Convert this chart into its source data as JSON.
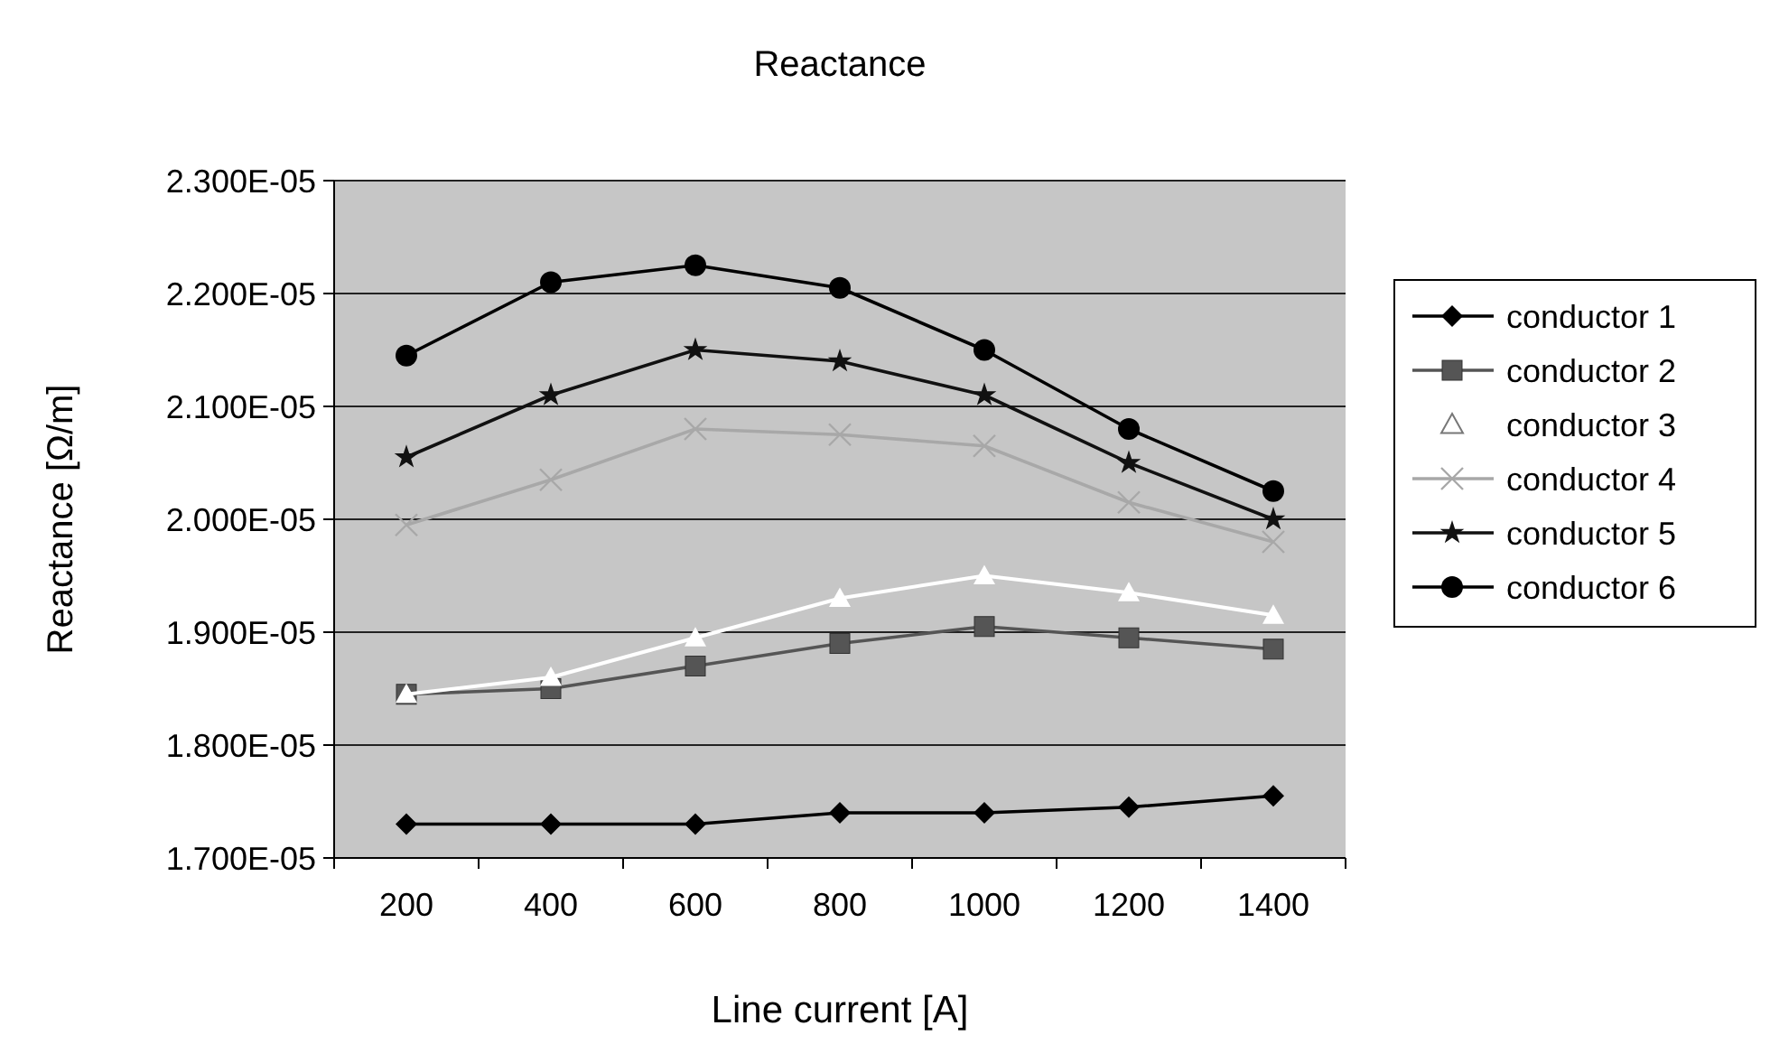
{
  "chart_data": {
    "type": "line",
    "title": "Reactance",
    "xlabel": "Line current [A]",
    "ylabel": "Reactance [Ω/m]",
    "categories": [
      "200",
      "400",
      "600",
      "800",
      "1000",
      "1200",
      "1400"
    ],
    "ylim": [
      1.7e-05,
      2.3e-05
    ],
    "yticks": [
      {
        "value": 1.7e-05,
        "label": "1.700E-05"
      },
      {
        "value": 1.8e-05,
        "label": "1.800E-05"
      },
      {
        "value": 1.9e-05,
        "label": "1.900E-05"
      },
      {
        "value": 2e-05,
        "label": "2.000E-05"
      },
      {
        "value": 2.1e-05,
        "label": "2.100E-05"
      },
      {
        "value": 2.2e-05,
        "label": "2.200E-05"
      },
      {
        "value": 2.3e-05,
        "label": "2.300E-05"
      }
    ],
    "grid": "y",
    "legend": "right",
    "series": [
      {
        "name": "conductor 1",
        "color": "#000000",
        "marker": "diamond",
        "values": [
          1.73e-05,
          1.73e-05,
          1.73e-05,
          1.74e-05,
          1.74e-05,
          1.745e-05,
          1.755e-05
        ]
      },
      {
        "name": "conductor 2",
        "color": "#555555",
        "marker": "square",
        "values": [
          1.845e-05,
          1.85e-05,
          1.87e-05,
          1.89e-05,
          1.905e-05,
          1.895e-05,
          1.885e-05
        ]
      },
      {
        "name": "conductor 3",
        "color": "#ffffff",
        "marker": "triangle",
        "values": [
          1.845e-05,
          1.86e-05,
          1.895e-05,
          1.93e-05,
          1.95e-05,
          1.935e-05,
          1.915e-05
        ]
      },
      {
        "name": "conductor 4",
        "color": "#a8a8a8",
        "marker": "cross",
        "values": [
          1.995e-05,
          2.035e-05,
          2.08e-05,
          2.075e-05,
          2.065e-05,
          2.015e-05,
          1.98e-05
        ]
      },
      {
        "name": "conductor 5",
        "color": "#111111",
        "marker": "star",
        "values": [
          2.055e-05,
          2.11e-05,
          2.15e-05,
          2.14e-05,
          2.11e-05,
          2.05e-05,
          2e-05
        ]
      },
      {
        "name": "conductor 6",
        "color": "#000000",
        "marker": "circle",
        "values": [
          2.145e-05,
          2.21e-05,
          2.225e-05,
          2.205e-05,
          2.15e-05,
          2.08e-05,
          2.025e-05
        ]
      }
    ]
  }
}
